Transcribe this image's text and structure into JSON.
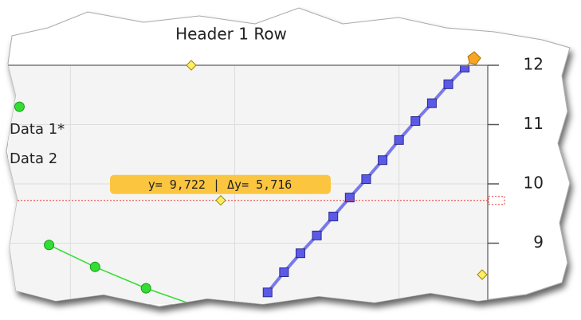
{
  "chart_data": {
    "type": "line",
    "title": "Header 1 Row",
    "annotation": "y= 9,722 | Δy= 5,716",
    "cursor_y": 9.722,
    "xlim": [
      0.62,
      3.54
    ],
    "xticks": [
      1,
      2,
      3
    ],
    "ylim": [
      8,
      12
    ],
    "yticks": [
      9,
      10,
      11,
      12
    ],
    "grid": true,
    "series": [
      {
        "name": "Data 1*",
        "color": "#5a5ae6",
        "marker": "square",
        "x": [
          2.2,
          2.3,
          2.4,
          2.5,
          2.6,
          2.7,
          2.8,
          2.9,
          3.0,
          3.1,
          3.2,
          3.3,
          3.4
        ],
        "values": [
          8.17,
          8.51,
          8.83,
          9.13,
          9.45,
          9.77,
          10.08,
          10.4,
          10.74,
          11.06,
          11.36,
          11.68,
          11.96
        ]
      },
      {
        "name": "Data 2",
        "color": "#33dd33",
        "marker": "circle",
        "x": [
          0.69,
          0.78,
          0.87,
          1.15,
          1.46,
          1.78
        ],
        "values": [
          11.3,
          null,
          8.97,
          8.6,
          8.24,
          7.93
        ]
      }
    ]
  }
}
